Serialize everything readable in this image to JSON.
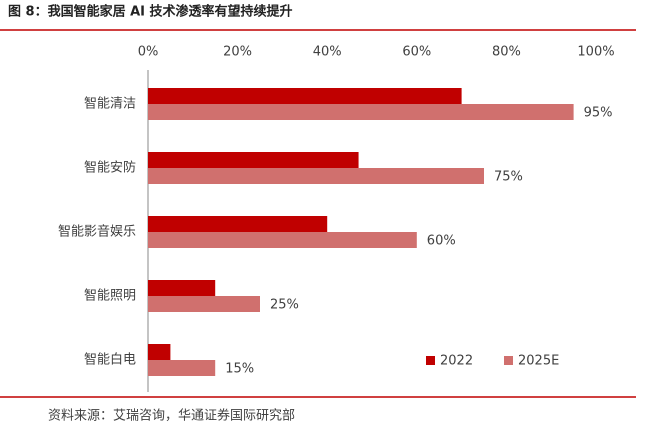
{
  "chart_data": {
    "type": "bar",
    "orientation": "horizontal",
    "title": "图 8：我国智能家居 AI 技术渗透率有望持续提升",
    "source": "资料来源：艾瑞咨询，华通证券国际研究部",
    "categories": [
      "智能清洁",
      "智能安防",
      "智能影音娱乐",
      "智能照明",
      "智能白电"
    ],
    "series": [
      {
        "name": "2022",
        "color": "#c00000",
        "values": [
          70,
          47,
          40,
          15,
          5
        ]
      },
      {
        "name": "2025E",
        "color": "#d0706e",
        "values": [
          95,
          75,
          60,
          25,
          15
        ],
        "value_labels": [
          "95%",
          "75%",
          "60%",
          "25%",
          "15%"
        ]
      }
    ],
    "xlim": [
      0,
      100
    ],
    "xticks": [
      {
        "value": 0,
        "label": "0%"
      },
      {
        "value": 20,
        "label": "20%"
      },
      {
        "value": 40,
        "label": "40%"
      },
      {
        "value": 60,
        "label": "60%"
      },
      {
        "value": 80,
        "label": "80%"
      },
      {
        "value": 100,
        "label": "100%"
      }
    ],
    "grid": false,
    "legend": "bottom-right"
  }
}
